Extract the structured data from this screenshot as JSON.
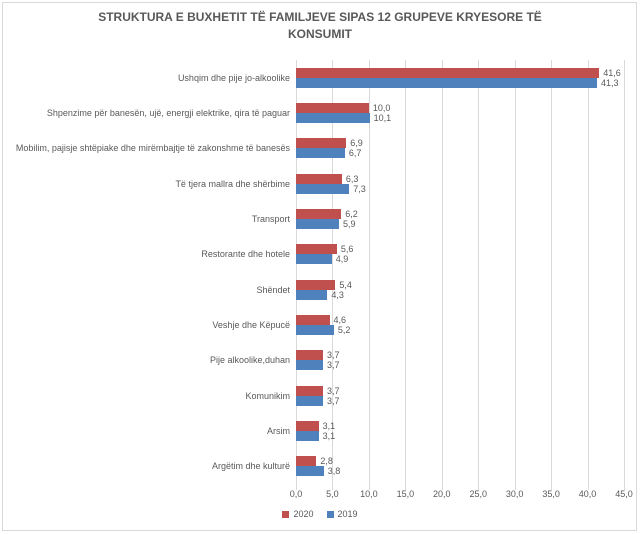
{
  "chart_data": {
    "type": "bar",
    "orientation": "horizontal",
    "title": "STRUKTURA E BUXHETIT TË FAMILJEVE SIPAS 12 GRUPEVE KRYESORE TË KONSUMIT",
    "categories": [
      "Ushqim dhe pije jo-alkoolike",
      "Shpenzime për banesën, ujë, energji elektrike, qira të paguar",
      "Mobilim, pajisje shtëpiake dhe mirëmbajtje të zakonshme të banesës",
      "Të tjera mallra dhe shërbime",
      "Transport",
      "Restorante dhe hotele",
      "Shëndet",
      "Veshje dhe Këpucë",
      "Pije alkoolike,duhan",
      "Komunikim",
      "Arsim",
      "Argëtim dhe kulturë"
    ],
    "series": [
      {
        "name": "2020",
        "color": "#C0504D",
        "values": [
          41.6,
          10.0,
          6.9,
          6.3,
          6.2,
          5.6,
          5.4,
          4.6,
          3.7,
          3.7,
          3.1,
          2.8
        ]
      },
      {
        "name": "2019",
        "color": "#4F81BD",
        "values": [
          41.3,
          10.1,
          6.7,
          7.3,
          5.9,
          4.9,
          4.3,
          5.2,
          3.7,
          3.7,
          3.1,
          3.8
        ]
      }
    ],
    "x_ticks": [
      "0,0",
      "5,0",
      "10,0",
      "15,0",
      "20,0",
      "25,0",
      "30,0",
      "35,0",
      "40,0",
      "45,0"
    ],
    "xlim": [
      0,
      45
    ],
    "grid": true,
    "legend_position": "bottom",
    "decimal_separator": ",",
    "text_color": "#595959",
    "grid_color": "#D9D9D9"
  }
}
